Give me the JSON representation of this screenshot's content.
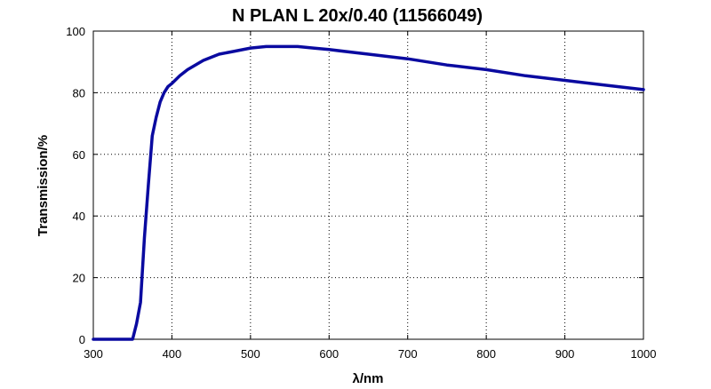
{
  "chart_data": {
    "type": "line",
    "title": "N PLAN L 20x/0.40 (11566049)",
    "xlabel": "λ/nm",
    "ylabel": "Transmission/%",
    "xlim": [
      300,
      1000
    ],
    "ylim": [
      0,
      100
    ],
    "x_ticks": [
      300,
      400,
      500,
      600,
      700,
      800,
      900,
      1000
    ],
    "y_ticks": [
      0,
      20,
      40,
      60,
      80,
      100
    ],
    "grid": true,
    "legend": "none",
    "line_color": "#0a0aa0",
    "series": [
      {
        "x": [
          300,
          350,
          355,
          360,
          365,
          370,
          375,
          380,
          385,
          390,
          395,
          400,
          410,
          420,
          440,
          460,
          480,
          500,
          520,
          540,
          560,
          580,
          600,
          650,
          700,
          750,
          800,
          850,
          900,
          950,
          1000
        ],
        "y": [
          0,
          0,
          5,
          12,
          33,
          50,
          66,
          72,
          77,
          80,
          82,
          83,
          85.5,
          87.5,
          90.5,
          92.5,
          93.5,
          94.5,
          95,
          95,
          95,
          94.5,
          94,
          92.5,
          91,
          89,
          87.5,
          85.5,
          84,
          82.5,
          81
        ]
      }
    ]
  }
}
